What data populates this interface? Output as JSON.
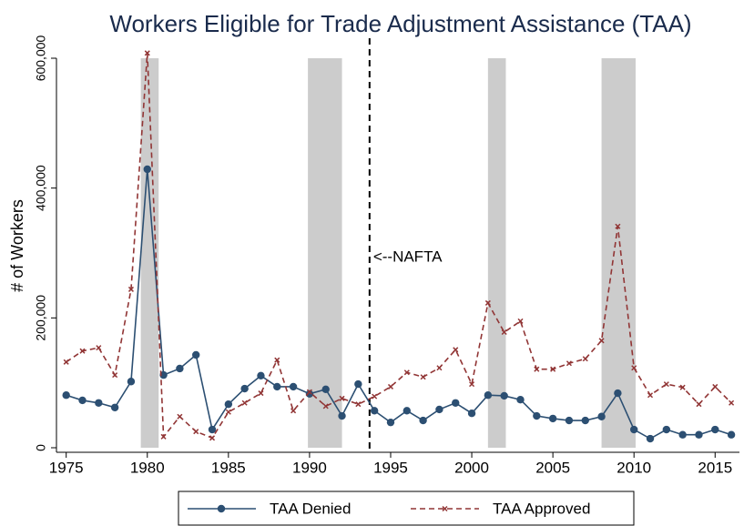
{
  "chart_data": {
    "type": "line",
    "title": "Workers Eligible for Trade Adjustment Assistance (TAA)",
    "y_label": "# of Workers",
    "x": [
      1975,
      1976,
      1977,
      1978,
      1979,
      1980,
      1981,
      1982,
      1983,
      1984,
      1985,
      1986,
      1987,
      1988,
      1989,
      1990,
      1991,
      1992,
      1993,
      1994,
      1995,
      1996,
      1997,
      1998,
      1999,
      2000,
      2001,
      2002,
      2003,
      2004,
      2005,
      2006,
      2007,
      2008,
      2009,
      2010,
      2011,
      2012,
      2013,
      2014,
      2015,
      2016
    ],
    "series": [
      {
        "name": "TAA Denied",
        "color": "#2c4f72",
        "dash": "solid",
        "marker": "circle",
        "values": [
          81000,
          73000,
          69000,
          62000,
          102000,
          429000,
          112000,
          122000,
          143000,
          28000,
          67000,
          91000,
          111000,
          94000,
          94000,
          83000,
          90000,
          49000,
          98000,
          57000,
          39000,
          57000,
          42000,
          59000,
          69000,
          53000,
          81000,
          80000,
          74000,
          49000,
          45000,
          42000,
          42000,
          48000,
          84000,
          28000,
          14000,
          28000,
          20000,
          20000,
          28000,
          20000
        ]
      },
      {
        "name": "TAA Approved",
        "color": "#913535",
        "dash": "dashed",
        "marker": "x",
        "values": [
          132000,
          149000,
          154000,
          112000,
          244000,
          608000,
          17000,
          48000,
          25000,
          15000,
          55000,
          69000,
          84000,
          135000,
          57000,
          86000,
          64000,
          76000,
          67000,
          79000,
          94000,
          116000,
          109000,
          123000,
          151000,
          98000,
          223000,
          178000,
          195000,
          121000,
          121000,
          130000,
          137000,
          165000,
          341000,
          123000,
          81000,
          98000,
          93000,
          67000,
          94000,
          69000
        ]
      }
    ],
    "shaded_periods": [
      [
        1979.6,
        1980.7
      ],
      [
        1989.9,
        1992.0
      ],
      [
        2001.0,
        2002.1
      ],
      [
        2008.0,
        2010.1
      ]
    ],
    "shade_color": "#cccccc",
    "annotation": {
      "text": "<--NAFTA",
      "x": 1993.7
    },
    "xlim": [
      1974.4,
      2016.5
    ],
    "xticks": [
      1975,
      1980,
      1985,
      1990,
      1995,
      2000,
      2005,
      2010,
      2015
    ],
    "ylim": [
      0,
      600000
    ],
    "yticks": [
      0,
      {
        "value": 200000,
        "label": "200,000"
      },
      {
        "value": 400000,
        "label": "400,000"
      },
      {
        "value": 600000,
        "label": "600,000"
      }
    ],
    "legend": "bottom"
  }
}
